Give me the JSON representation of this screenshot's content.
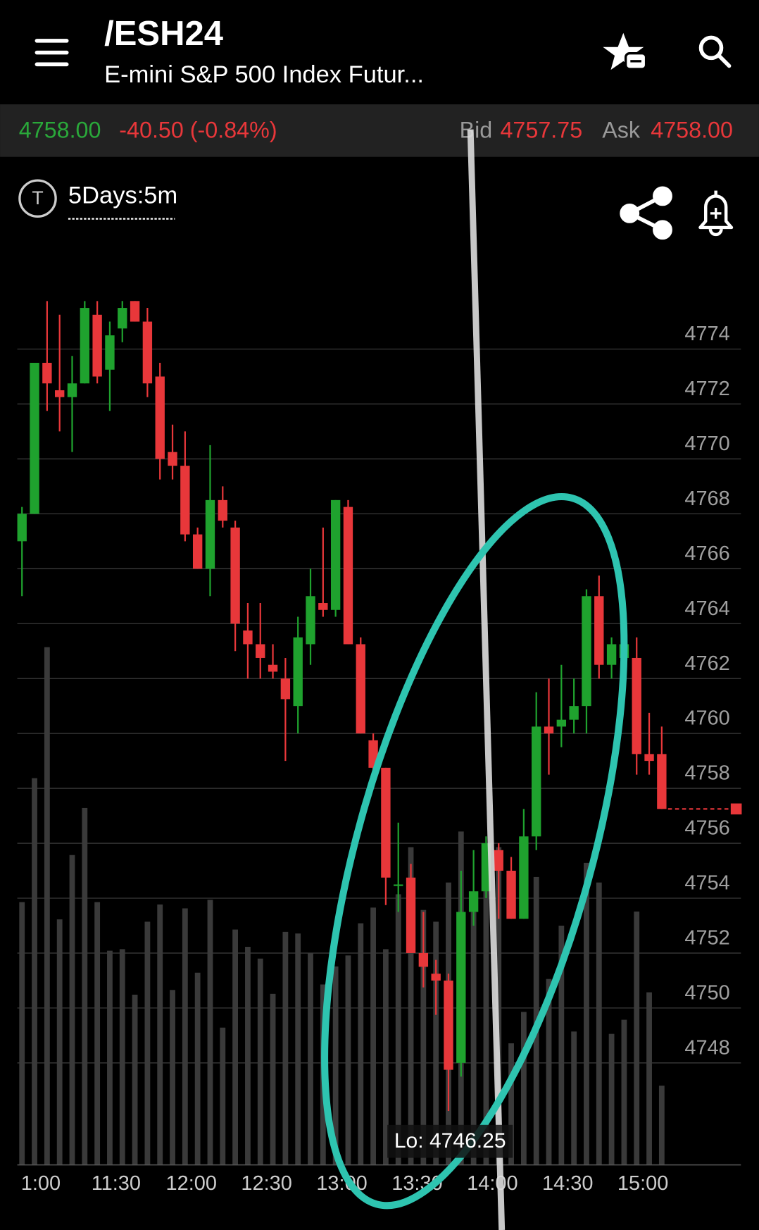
{
  "header": {
    "symbol": "/ESH24",
    "name": "E-mini S&P 500 Index Futur..."
  },
  "quote": {
    "last": "4758.00",
    "change": "-40.50 (-0.84%)",
    "bid_label": "Bid",
    "bid": "4757.75",
    "ask_label": "Ask",
    "ask": "4758.00"
  },
  "timeframe": "5Days:5m",
  "chart_data": {
    "type": "candlestick",
    "low_label": "Lo: 4746.25",
    "up_color": "#1fa22e",
    "down_color": "#e8373a",
    "volume_color": "#3a3a3a",
    "categories": [
      null,
      "1:00",
      null,
      null,
      null,
      null,
      null,
      "11:30",
      null,
      null,
      null,
      null,
      null,
      "12:00",
      null,
      null,
      null,
      null,
      null,
      "12:30",
      null,
      null,
      null,
      null,
      null,
      "13:00",
      null,
      null,
      null,
      null,
      null,
      "13:30",
      null,
      null,
      null,
      null,
      null,
      "14:00",
      null,
      null,
      null,
      null,
      null,
      "14:30",
      null,
      null,
      null,
      null,
      null,
      "15:00",
      null,
      null
    ],
    "open": [
      4767,
      4768,
      4773.5,
      4772.5,
      4772.25,
      4772.75,
      4775.25,
      4773.25,
      4774.75,
      4775.75,
      4775,
      4773,
      4770.25,
      4769.75,
      4767.25,
      4766,
      4768.5,
      4767.5,
      4763.75,
      4763.25,
      4762.5,
      4762,
      4761,
      4763.25,
      4764.75,
      4764.5,
      4768.25,
      4763.25,
      4759.75,
      4758.75,
      4754.5,
      4754.75,
      4752,
      4751.25,
      4751,
      4748,
      4753.5,
      4754.25,
      4755.75,
      4755,
      4753.25,
      4756.25,
      4760.25,
      4760.25,
      4760.5,
      4761,
      4765,
      4762.5,
      4762.75,
      4762.75,
      4759.25,
      4759.25
    ],
    "high": [
      4768.25,
      4773.5,
      4775.75,
      4775.25,
      4773.75,
      4775.75,
      4775.75,
      4775,
      4775.75,
      4775.75,
      4775.5,
      4773.5,
      4771.25,
      4771,
      4767.5,
      4770.5,
      4769,
      4767.75,
      4764.75,
      4764.75,
      4763.25,
      4762.75,
      4764.25,
      4766,
      4767.5,
      4768.5,
      4768.5,
      4763.5,
      4760,
      4758.75,
      4756.75,
      4755.25,
      4753.5,
      4751.75,
      4751.25,
      4755,
      4755.75,
      4756.25,
      4756,
      4755.5,
      4757.25,
      4761.5,
      4762,
      4762.5,
      4762,
      4765.25,
      4765.75,
      4763.5,
      4763.5,
      4763.5,
      4760.75,
      4760.25
    ],
    "low": [
      4765,
      4768,
      4771.75,
      4771,
      4770.25,
      4772.75,
      4772.75,
      4771.75,
      4774.25,
      4775,
      4772.25,
      4769.25,
      4769.25,
      4767,
      4766,
      4765,
      4767.5,
      4763,
      4762,
      4762,
      4762,
      4759,
      4760,
      4762.5,
      4764.25,
      4764.25,
      4763.25,
      4760,
      4758.25,
      4753.75,
      4753.5,
      4752,
      4750.75,
      4749.75,
      4746.25,
      4747.5,
      4753,
      4754,
      4753.25,
      4753.25,
      4753.25,
      4755.75,
      4758.5,
      4759.5,
      4760,
      4760,
      4762,
      4762,
      4762.5,
      4758.5,
      4758.5,
      4757.25
    ],
    "close": [
      4768,
      4773.5,
      4772.75,
      4772.25,
      4772.75,
      4775.5,
      4773,
      4774.5,
      4775.5,
      4775,
      4772.75,
      4770,
      4769.75,
      4767.25,
      4766,
      4768.5,
      4767.75,
      4764,
      4763.25,
      4762.75,
      4762.25,
      4761.25,
      4763.5,
      4765,
      4764.5,
      4768.5,
      4763.25,
      4760,
      4758.75,
      4754.75,
      4754.5,
      4752,
      4751.5,
      4751,
      4747.75,
      4753.5,
      4754.25,
      4756,
      4755,
      4753.25,
      4756.25,
      4760.25,
      4760,
      4760.5,
      4761,
      4765,
      4762.5,
      4763.25,
      4763.25,
      4759.25,
      4759,
      4757.25
    ],
    "volume": [
      335,
      493,
      660,
      313,
      395,
      455,
      335,
      273,
      275,
      217,
      310,
      332,
      223,
      327,
      245,
      338,
      175,
      300,
      278,
      263,
      218,
      297,
      295,
      270,
      230,
      253,
      267,
      308,
      328,
      275,
      345,
      405,
      325,
      310,
      360,
      425,
      325,
      410,
      405,
      155,
      195,
      367,
      237,
      305,
      170,
      385,
      360,
      167,
      185,
      323,
      220,
      101
    ],
    "ylim": [
      4744.25,
      4776
    ],
    "yticks": [
      4748,
      4750,
      4752,
      4754,
      4756,
      4758,
      4760,
      4762,
      4764,
      4766,
      4768,
      4770,
      4772,
      4774
    ],
    "grid": true
  }
}
